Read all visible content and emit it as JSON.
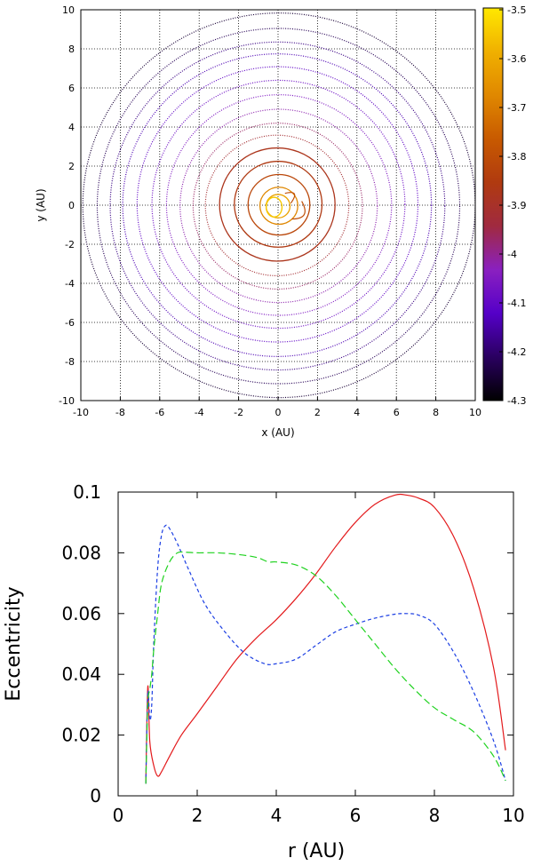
{
  "chart_data": [
    {
      "type": "scatter",
      "title": "",
      "xlabel": "x (AU)",
      "ylabel": "y (AU)",
      "xlim": [
        -10,
        10
      ],
      "ylim": [
        -10,
        10
      ],
      "xticks": [
        "-10",
        "-8",
        "-6",
        "-4",
        "-2",
        "0",
        "2",
        "4",
        "6",
        "8",
        "10"
      ],
      "yticks": [
        "-10",
        "-8",
        "-6",
        "-4",
        "-2",
        "0",
        "2",
        "4",
        "6",
        "8",
        "10"
      ],
      "grid": true,
      "colorbar": {
        "min": -4.3,
        "max": -3.5,
        "ticks": [
          "-3.5",
          "-3.6",
          "-3.7",
          "-3.8",
          "-3.9",
          "-4",
          "-4.1",
          "-4.2",
          "-4.3"
        ],
        "colors": [
          "#000000",
          "#2a0060",
          "#5500c8",
          "#8a20c0",
          "#a02a40",
          "#b03a10",
          "#c85a00",
          "#e08800",
          "#f0b000",
          "#ffe800"
        ]
      },
      "rings": [
        {
          "r": 0.6,
          "c": -3.62
        },
        {
          "r": 0.95,
          "c": -3.68
        },
        {
          "r": 1.55,
          "c": -3.82
        },
        {
          "r": 2.2,
          "c": -3.86
        },
        {
          "r": 2.9,
          "c": -3.88
        },
        {
          "r": 3.6,
          "c": -3.92
        },
        {
          "r": 4.25,
          "c": -3.97
        },
        {
          "r": 4.95,
          "c": -4.02
        },
        {
          "r": 5.65,
          "c": -4.05
        },
        {
          "r": 6.35,
          "c": -4.08
        },
        {
          "r": 7.05,
          "c": -4.1
        },
        {
          "r": 7.75,
          "c": -4.14
        },
        {
          "r": 8.4,
          "c": -4.18
        },
        {
          "r": 9.1,
          "c": -4.22
        },
        {
          "r": 9.85,
          "c": -4.25
        }
      ]
    },
    {
      "type": "line",
      "title": "",
      "xlabel": "r (AU)",
      "ylabel": "Eccentricity",
      "xlim": [
        0,
        10
      ],
      "ylim": [
        0,
        0.1
      ],
      "xticks": [
        "0",
        "2",
        "4",
        "6",
        "8",
        "10"
      ],
      "yticks": [
        "0",
        "0.02",
        "0.04",
        "0.06",
        "0.08",
        "0.1"
      ],
      "grid": false,
      "series": [
        {
          "name": "red",
          "color": "#e31a1c",
          "dash": "",
          "x": [
            0.7,
            0.75,
            0.8,
            0.9,
            1.0,
            1.1,
            1.3,
            1.6,
            2.0,
            2.5,
            3.0,
            3.5,
            4.0,
            4.5,
            5.0,
            5.5,
            6.0,
            6.5,
            7.0,
            7.3,
            7.6,
            8.0,
            8.5,
            9.0,
            9.5,
            9.8
          ],
          "y": [
            0.004,
            0.036,
            0.018,
            0.01,
            0.0065,
            0.008,
            0.013,
            0.02,
            0.027,
            0.036,
            0.045,
            0.052,
            0.058,
            0.065,
            0.073,
            0.082,
            0.09,
            0.096,
            0.099,
            0.099,
            0.098,
            0.095,
            0.085,
            0.068,
            0.042,
            0.015
          ]
        },
        {
          "name": "blue",
          "color": "#1c3fe3",
          "dash": "4,3",
          "x": [
            0.7,
            0.75,
            0.8,
            0.85,
            0.9,
            1.0,
            1.1,
            1.2,
            1.3,
            1.5,
            1.8,
            2.2,
            2.7,
            3.2,
            3.7,
            4.0,
            4.5,
            5.0,
            5.5,
            6.0,
            6.5,
            7.0,
            7.3,
            7.6,
            8.0,
            8.5,
            9.0,
            9.5,
            9.8
          ],
          "y": [
            0.004,
            0.034,
            0.025,
            0.03,
            0.05,
            0.075,
            0.086,
            0.089,
            0.088,
            0.083,
            0.074,
            0.063,
            0.054,
            0.047,
            0.0435,
            0.0435,
            0.045,
            0.0495,
            0.054,
            0.0565,
            0.0585,
            0.0598,
            0.06,
            0.0595,
            0.0565,
            0.047,
            0.034,
            0.018,
            0.005
          ]
        },
        {
          "name": "green",
          "color": "#1fd21f",
          "dash": "8,4",
          "x": [
            0.7,
            0.75,
            0.8,
            0.85,
            0.9,
            1.0,
            1.1,
            1.3,
            1.5,
            1.7,
            2.0,
            2.5,
            3.0,
            3.5,
            3.8,
            4.0,
            4.5,
            5.0,
            5.5,
            6.0,
            6.5,
            7.0,
            7.5,
            8.0,
            8.5,
            9.0,
            9.5,
            9.8
          ],
          "y": [
            0.004,
            0.03,
            0.035,
            0.04,
            0.048,
            0.06,
            0.07,
            0.077,
            0.08,
            0.0802,
            0.08,
            0.08,
            0.0795,
            0.0785,
            0.077,
            0.077,
            0.076,
            0.0725,
            0.066,
            0.058,
            0.05,
            0.042,
            0.035,
            0.029,
            0.025,
            0.021,
            0.013,
            0.005
          ]
        }
      ]
    }
  ]
}
